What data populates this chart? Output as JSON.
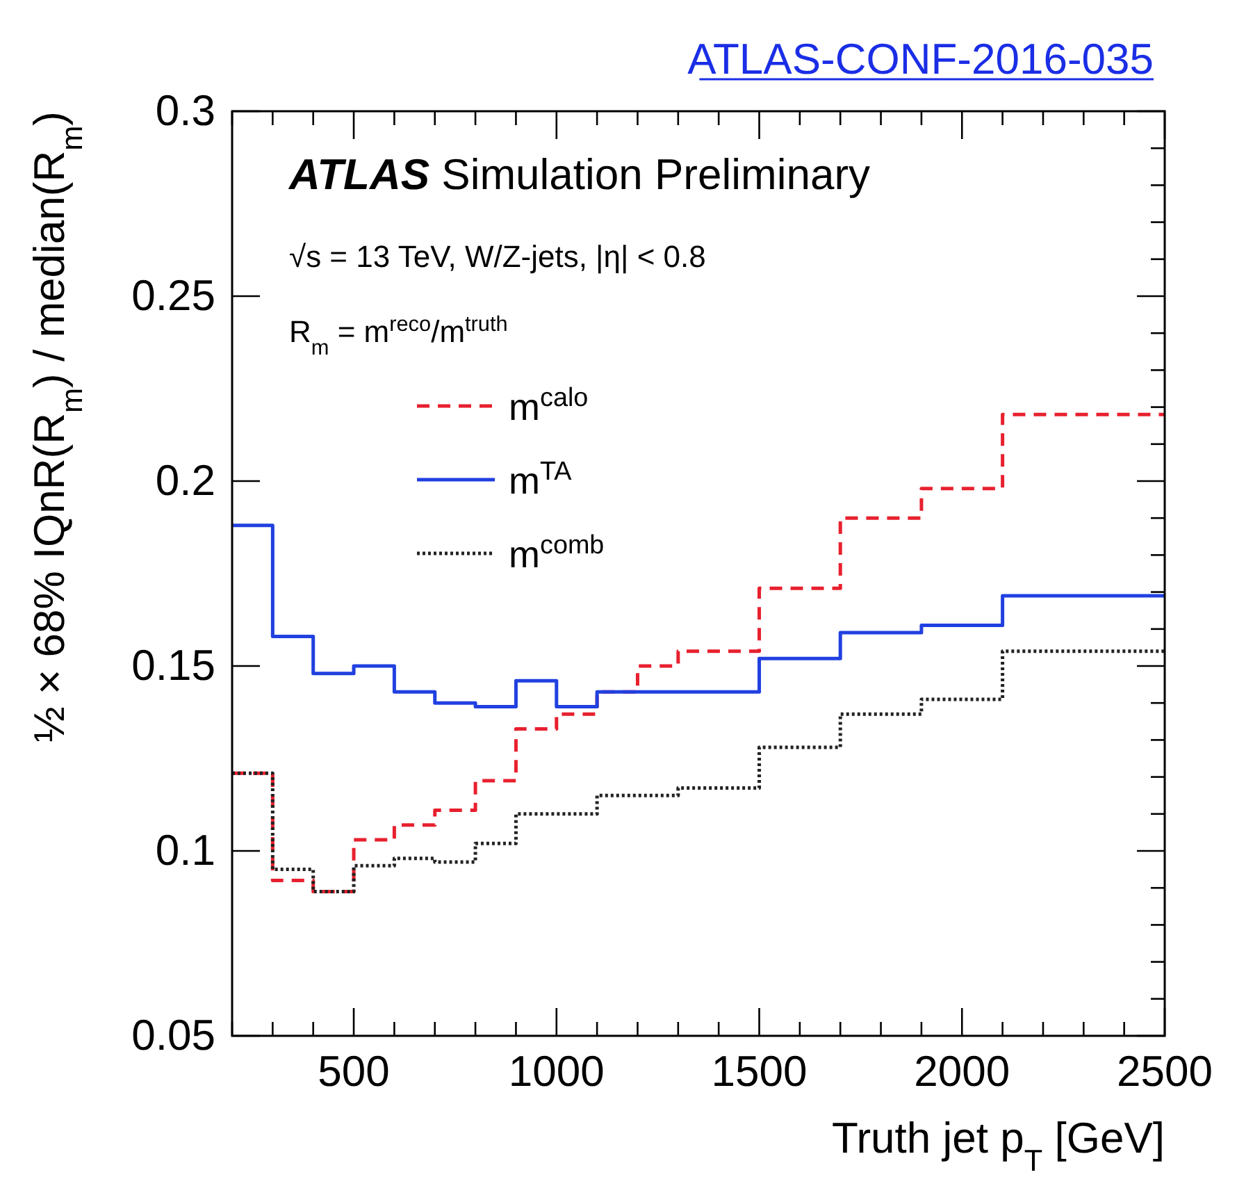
{
  "chart_data": {
    "type": "step",
    "xlabel": "Truth jet p$_{T}$ [GeV]",
    "ylabel": "½ × 68% IQnR(R$_{m}$) / median(R$_{m}$)",
    "annotations": [
      "ATLAS-CONF-2016-035",
      "ATLAS Simulation Preliminary",
      "√s = 13 TeV, W/Z-jets, |η| < 0.8",
      "R$_{m}$ = m$^{reco}$/m$^{truth}$"
    ],
    "x": [
      200,
      300,
      400,
      500,
      600,
      700,
      800,
      900,
      1000,
      1100,
      1200,
      1300,
      1500,
      1700,
      1900,
      2100,
      2500
    ],
    "series": [
      {
        "name": "m$^{calo}$",
        "color": "#e8202e",
        "line_style": "dashed",
        "values": [
          0.121,
          0.092,
          0.089,
          0.103,
          0.107,
          0.111,
          0.119,
          0.133,
          0.137,
          0.143,
          0.15,
          0.154,
          0.171,
          0.19,
          0.198,
          0.218,
          0.218
        ]
      },
      {
        "name": "m$^{TA}$",
        "color": "#2040e0",
        "line_style": "solid",
        "values": [
          0.188,
          0.158,
          0.148,
          0.15,
          0.143,
          0.14,
          0.139,
          0.146,
          0.139,
          0.143,
          0.143,
          0.143,
          0.152,
          0.159,
          0.161,
          0.169,
          0.169
        ]
      },
      {
        "name": "m$^{comb}$",
        "color": "#222222",
        "line_style": "dotted",
        "values": [
          0.121,
          0.095,
          0.089,
          0.096,
          0.098,
          0.097,
          0.102,
          0.11,
          0.11,
          0.115,
          0.115,
          0.117,
          0.128,
          0.137,
          0.141,
          0.154,
          0.154
        ]
      }
    ],
    "xlim": [
      200,
      2500
    ],
    "xticks": [
      500,
      1000,
      1500,
      2000,
      2500
    ],
    "ylim": [
      0.05,
      0.3
    ],
    "yticks": [
      0.05,
      0.1,
      0.15,
      0.2,
      0.25,
      0.3
    ],
    "grid": false,
    "legend": "top left"
  }
}
